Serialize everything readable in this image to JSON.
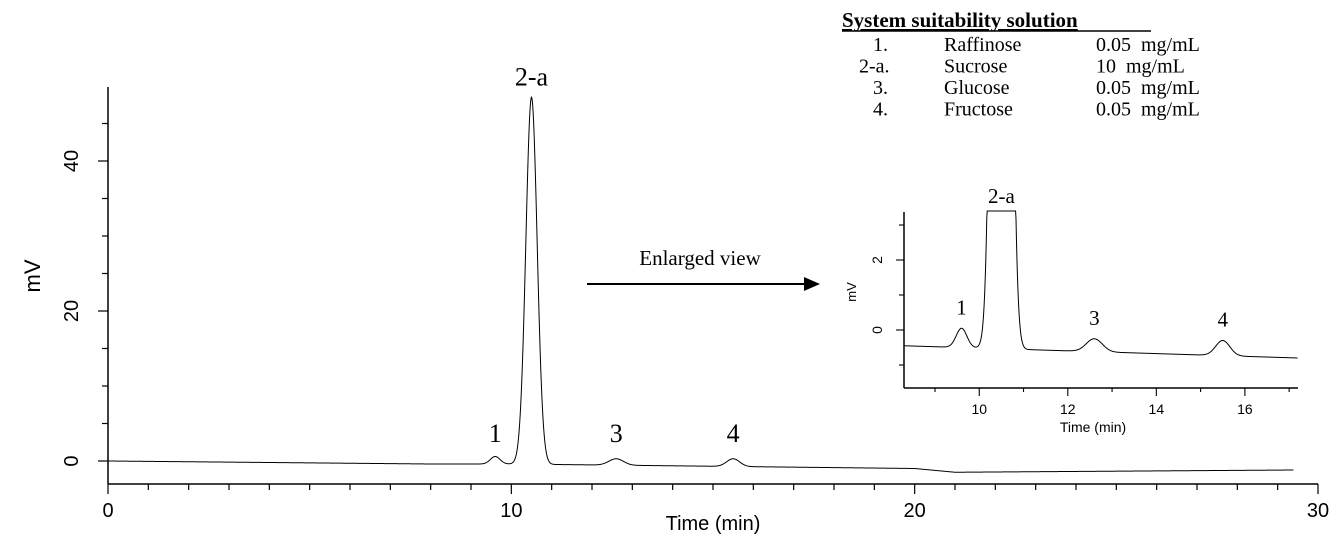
{
  "chart_data": [
    {
      "type": "line",
      "xlabel": "Time (min)",
      "ylabel": "mV",
      "xlim": [
        0,
        30
      ],
      "ylim": [
        -3,
        50
      ],
      "x_ticks": [
        "0",
        "10",
        "20",
        "30"
      ],
      "y_ticks": [
        "0",
        "20",
        "40"
      ],
      "peaks": [
        {
          "label": "1",
          "time": 9.6,
          "height": 0.6
        },
        {
          "label": "2-a",
          "time": 10.5,
          "height": 48.5
        },
        {
          "label": "3",
          "time": 12.6,
          "height": 0.3
        },
        {
          "label": "4",
          "time": 15.5,
          "height": 0.3
        }
      ],
      "baseline": [
        [
          0,
          0.0
        ],
        [
          8,
          -0.4
        ],
        [
          10,
          -0.4
        ],
        [
          20,
          -1.0
        ],
        [
          21,
          -1.5
        ],
        [
          29.4,
          -1.2
        ]
      ]
    },
    {
      "type": "line",
      "xlabel": "Time (min)",
      "ylabel": "mV",
      "xlim": [
        8.3,
        17.2
      ],
      "ylim": [
        -1.6,
        3.4
      ],
      "x_ticks": [
        "10",
        "12",
        "14",
        "16"
      ],
      "y_ticks": [
        "0",
        "2"
      ],
      "peaks": [
        {
          "label": "1",
          "time": 9.6,
          "height": 0.05
        },
        {
          "label": "2-a",
          "time": 10.5,
          "height": 3.4
        },
        {
          "label": "3",
          "time": 12.6,
          "height": -0.25
        },
        {
          "label": "4",
          "time": 15.5,
          "height": -0.3
        }
      ],
      "baseline": [
        [
          8.3,
          -0.45
        ],
        [
          17.2,
          -0.8
        ]
      ]
    }
  ],
  "annotation": {
    "arrow_label": "Enlarged view"
  },
  "legend": {
    "title": "System suitability solution",
    "items": [
      {
        "num": "1.",
        "name": "Raffinose",
        "conc": "0.05  mg/mL"
      },
      {
        "num": "2-a.",
        "name": "Sucrose",
        "conc": "10  mg/mL"
      },
      {
        "num": "3.",
        "name": "Glucose",
        "conc": "0.05  mg/mL"
      },
      {
        "num": "4.",
        "name": "Fructose",
        "conc": "0.05  mg/mL"
      }
    ]
  }
}
